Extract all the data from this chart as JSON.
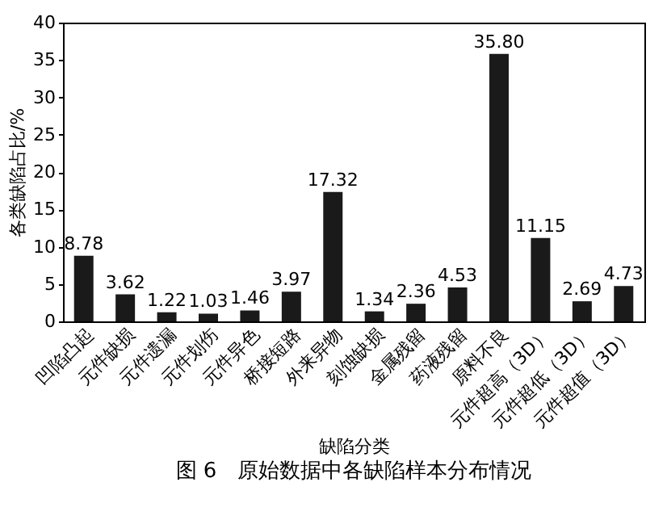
{
  "chart_data": {
    "type": "bar",
    "title": "图 6　原始数据中各缺陷样本分布情况",
    "xlabel": "缺陷分类",
    "ylabel": "各类缺陷占比/%",
    "categories": [
      "凹陷凸起",
      "元件缺损",
      "元件遗漏",
      "元件划伤",
      "元件异色",
      "桥接短路",
      "外来异物",
      "刻蚀缺损",
      "金属残留",
      "药液残留",
      "原料不良",
      "元件超高（3D）",
      "元件超低（3D）",
      "元件超值（3D）"
    ],
    "values": [
      8.78,
      3.62,
      1.22,
      1.03,
      1.46,
      3.97,
      17.32,
      1.34,
      2.36,
      4.53,
      35.8,
      11.15,
      2.69,
      4.73
    ],
    "value_labels": [
      "8.78",
      "3.62",
      "1.22",
      "1.03",
      "1.46",
      "3.97",
      "17.32",
      "1.34",
      "2.36",
      "4.53",
      "35.80",
      "11.15",
      "2.69",
      "4.73"
    ],
    "color": "#1a1a1a",
    "ylim": [
      0,
      40
    ],
    "yticks": [
      0,
      5,
      10,
      15,
      20,
      25,
      30,
      35,
      40
    ],
    "grid": false
  }
}
